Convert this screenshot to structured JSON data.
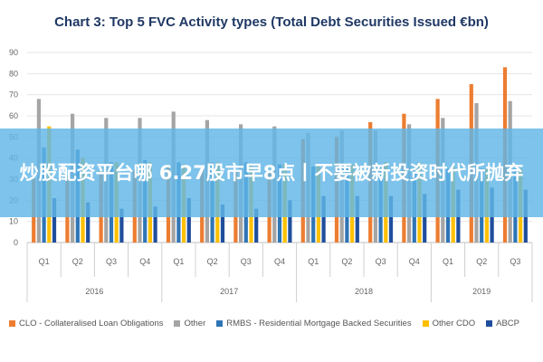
{
  "overlay": {
    "headline": "炒股配资平台哪 6.27股市早8点丨不要被新投资时代所抛弃"
  },
  "chart_data": {
    "type": "bar",
    "title": "Chart 3: Top 5 FVC Activity types (Total Debt Securities Issued €bn)",
    "xlabel": "",
    "ylabel": "",
    "ylim": [
      0,
      90
    ],
    "yticks": [
      0,
      10,
      20,
      30,
      40,
      50,
      60,
      70,
      80,
      90
    ],
    "grid": true,
    "legend_position": "bottom",
    "categories": [
      "Q1",
      "Q2",
      "Q3",
      "Q4",
      "Q1",
      "Q2",
      "Q3",
      "Q4",
      "Q1",
      "Q2",
      "Q3",
      "Q4",
      "Q1",
      "Q2",
      "Q3"
    ],
    "years": [
      {
        "label": "2016",
        "span": 4
      },
      {
        "label": "2017",
        "span": 4
      },
      {
        "label": "2018",
        "span": 4
      },
      {
        "label": "2019",
        "span": 3
      }
    ],
    "series": [
      {
        "name": "CLO - Collateralised Loan Obligations",
        "color": "#ed7d31",
        "values": [
          30,
          32,
          34,
          34,
          36,
          35,
          34,
          34,
          49,
          50,
          57,
          61,
          68,
          75,
          83
        ]
      },
      {
        "name": "Other",
        "color": "#a5a5a5",
        "values": [
          68,
          61,
          59,
          59,
          62,
          58,
          56,
          55,
          52,
          53,
          53,
          56,
          59,
          66,
          67
        ]
      },
      {
        "name": "RMBS - Residential Mortgage Backed Securities",
        "color": "#2e75b6",
        "values": [
          45,
          44,
          38,
          39,
          38,
          38,
          38,
          37,
          36,
          36,
          36,
          35,
          35,
          35,
          35
        ]
      },
      {
        "name": "Other CDO",
        "color": "#ffc000",
        "values": [
          55,
          40,
          38,
          38,
          37,
          38,
          37,
          37,
          37,
          37,
          38,
          38,
          36,
          35,
          35
        ]
      },
      {
        "name": "ABCP",
        "color": "#1f4e9c",
        "values": [
          21,
          19,
          16,
          17,
          21,
          18,
          16,
          20,
          22,
          22,
          22,
          23,
          25,
          26,
          25
        ]
      }
    ]
  }
}
